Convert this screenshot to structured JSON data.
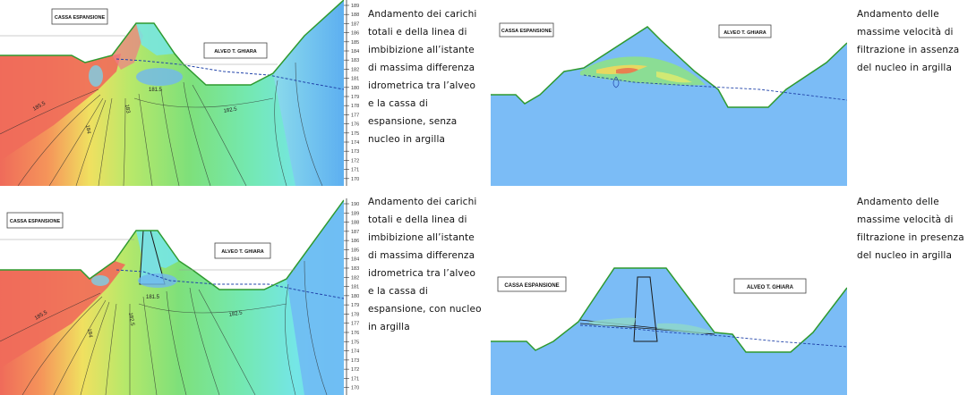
{
  "captions": {
    "top_left": "Andamento dei carichi totali e della linea di imbibizione all’istante di massima differenza idrometrica tra l’alveo e la cassa di espansione, senza nucleo in argilla",
    "top_right": "Andamento delle massime velocità di filtrazione in assenza del nucleo in argilla",
    "bottom_left": "Andamento dei carichi totali e della linea di imbibizione all’istante di massima differenza idrometrica tra l’alveo e la cassa di espansione, con nucleo in argilla",
    "bottom_right": "Andamento delle massime velocità di filtrazione in presenza del nucleo in argilla"
  },
  "labels": {
    "cassa": "CASSA ESPANSIONE",
    "alveo": "ALVEO T. GHIARA"
  },
  "contour_labels": {
    "top": [
      "185.5",
      "184",
      "183",
      "181.5",
      "182.5"
    ],
    "bottom": [
      "185.5",
      "184",
      "182.5",
      "181.5",
      "182.5"
    ]
  },
  "scale_top": [
    "189",
    "188",
    "187",
    "186",
    "185",
    "184",
    "183",
    "182",
    "181",
    "180",
    "179",
    "178",
    "177",
    "176",
    "175",
    "174",
    "173",
    "172",
    "171",
    "170"
  ],
  "scale_bottom": [
    "190",
    "189",
    "188",
    "187",
    "186",
    "185",
    "184",
    "183",
    "182",
    "181",
    "180",
    "179",
    "178",
    "177",
    "176",
    "175",
    "174",
    "173",
    "172",
    "171",
    "170"
  ],
  "colors": {
    "red": "#ef6b5a",
    "orange": "#f5a35c",
    "yellow": "#f0e060",
    "lime": "#b8e86a",
    "green": "#7ee07a",
    "mint": "#6ee8b8",
    "cyan": "#74e6e6",
    "blue": "#6fb7f5",
    "velocity_bg": "#7bbcf6",
    "ground_line": "#2f9a2f"
  },
  "icons": {
    "cassa_label_box": "label-box",
    "alveo_label_box": "label-box"
  }
}
